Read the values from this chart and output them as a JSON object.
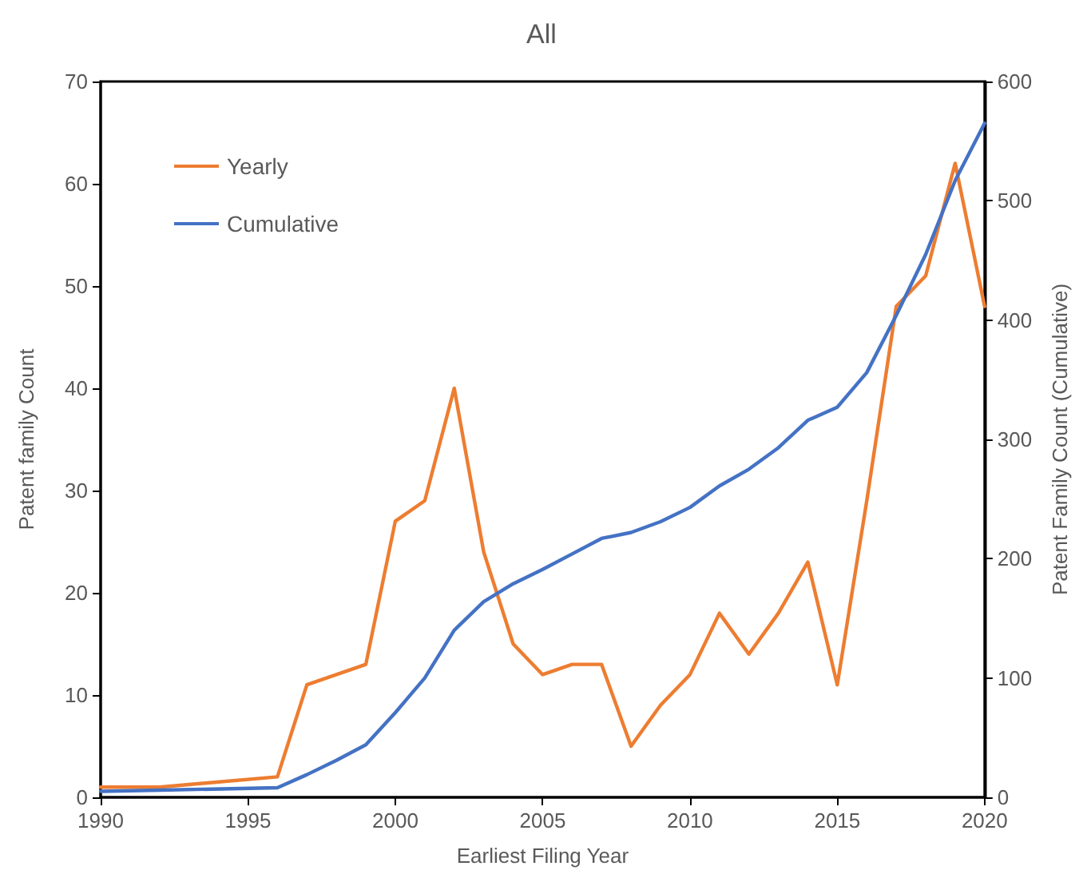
{
  "chart_data": {
    "type": "line",
    "title": "All",
    "xlabel": "Earliest Filing Year",
    "ylabel": "Patent family Count",
    "y2label": "Patent Family Count (Cumulative)",
    "series": [
      {
        "name": "Yearly",
        "color": "#ed7d31",
        "x": [
          1990,
          1992,
          1996,
          1997,
          1998,
          1999,
          2000,
          2001,
          2002,
          2003,
          2004,
          2005,
          2006,
          2007,
          2008,
          2009,
          2010,
          2011,
          2012,
          2013,
          2014,
          2015,
          2016,
          2017,
          2018,
          2019,
          2020
        ],
        "values": [
          1,
          1,
          2,
          11,
          12,
          13,
          27,
          29,
          40,
          24,
          15,
          12,
          13,
          13,
          5,
          9,
          12,
          18,
          14,
          18,
          23,
          11,
          29,
          48,
          51,
          62,
          48
        ]
      },
      {
        "name": "Cumulative",
        "color": "#4472c4",
        "axis": "y2",
        "x": [
          1990,
          1992,
          1996,
          1997,
          1998,
          1999,
          2000,
          2001,
          2002,
          2003,
          2004,
          2005,
          2006,
          2007,
          2008,
          2009,
          2010,
          2011,
          2012,
          2013,
          2014,
          2015,
          2016,
          2017,
          2018,
          2019,
          2020
        ],
        "values": [
          5,
          6,
          8,
          19,
          31,
          44,
          71,
          100,
          140,
          164,
          179,
          191,
          204,
          217,
          222,
          231,
          243,
          261,
          275,
          293,
          316,
          327,
          356,
          404,
          455,
          517,
          565
        ]
      }
    ],
    "xlim": [
      1990,
      2020
    ],
    "xticks": [
      1990,
      1995,
      2000,
      2005,
      2010,
      2015,
      2020
    ],
    "ylim": [
      0,
      70
    ],
    "yticks": [
      0,
      10,
      20,
      30,
      40,
      50,
      60,
      70
    ],
    "y2lim": [
      0,
      600
    ],
    "y2ticks": [
      0,
      100,
      200,
      300,
      400,
      500,
      600
    ],
    "legend": "top left",
    "marker": "none",
    "line_style": "solid",
    "grid": false
  }
}
